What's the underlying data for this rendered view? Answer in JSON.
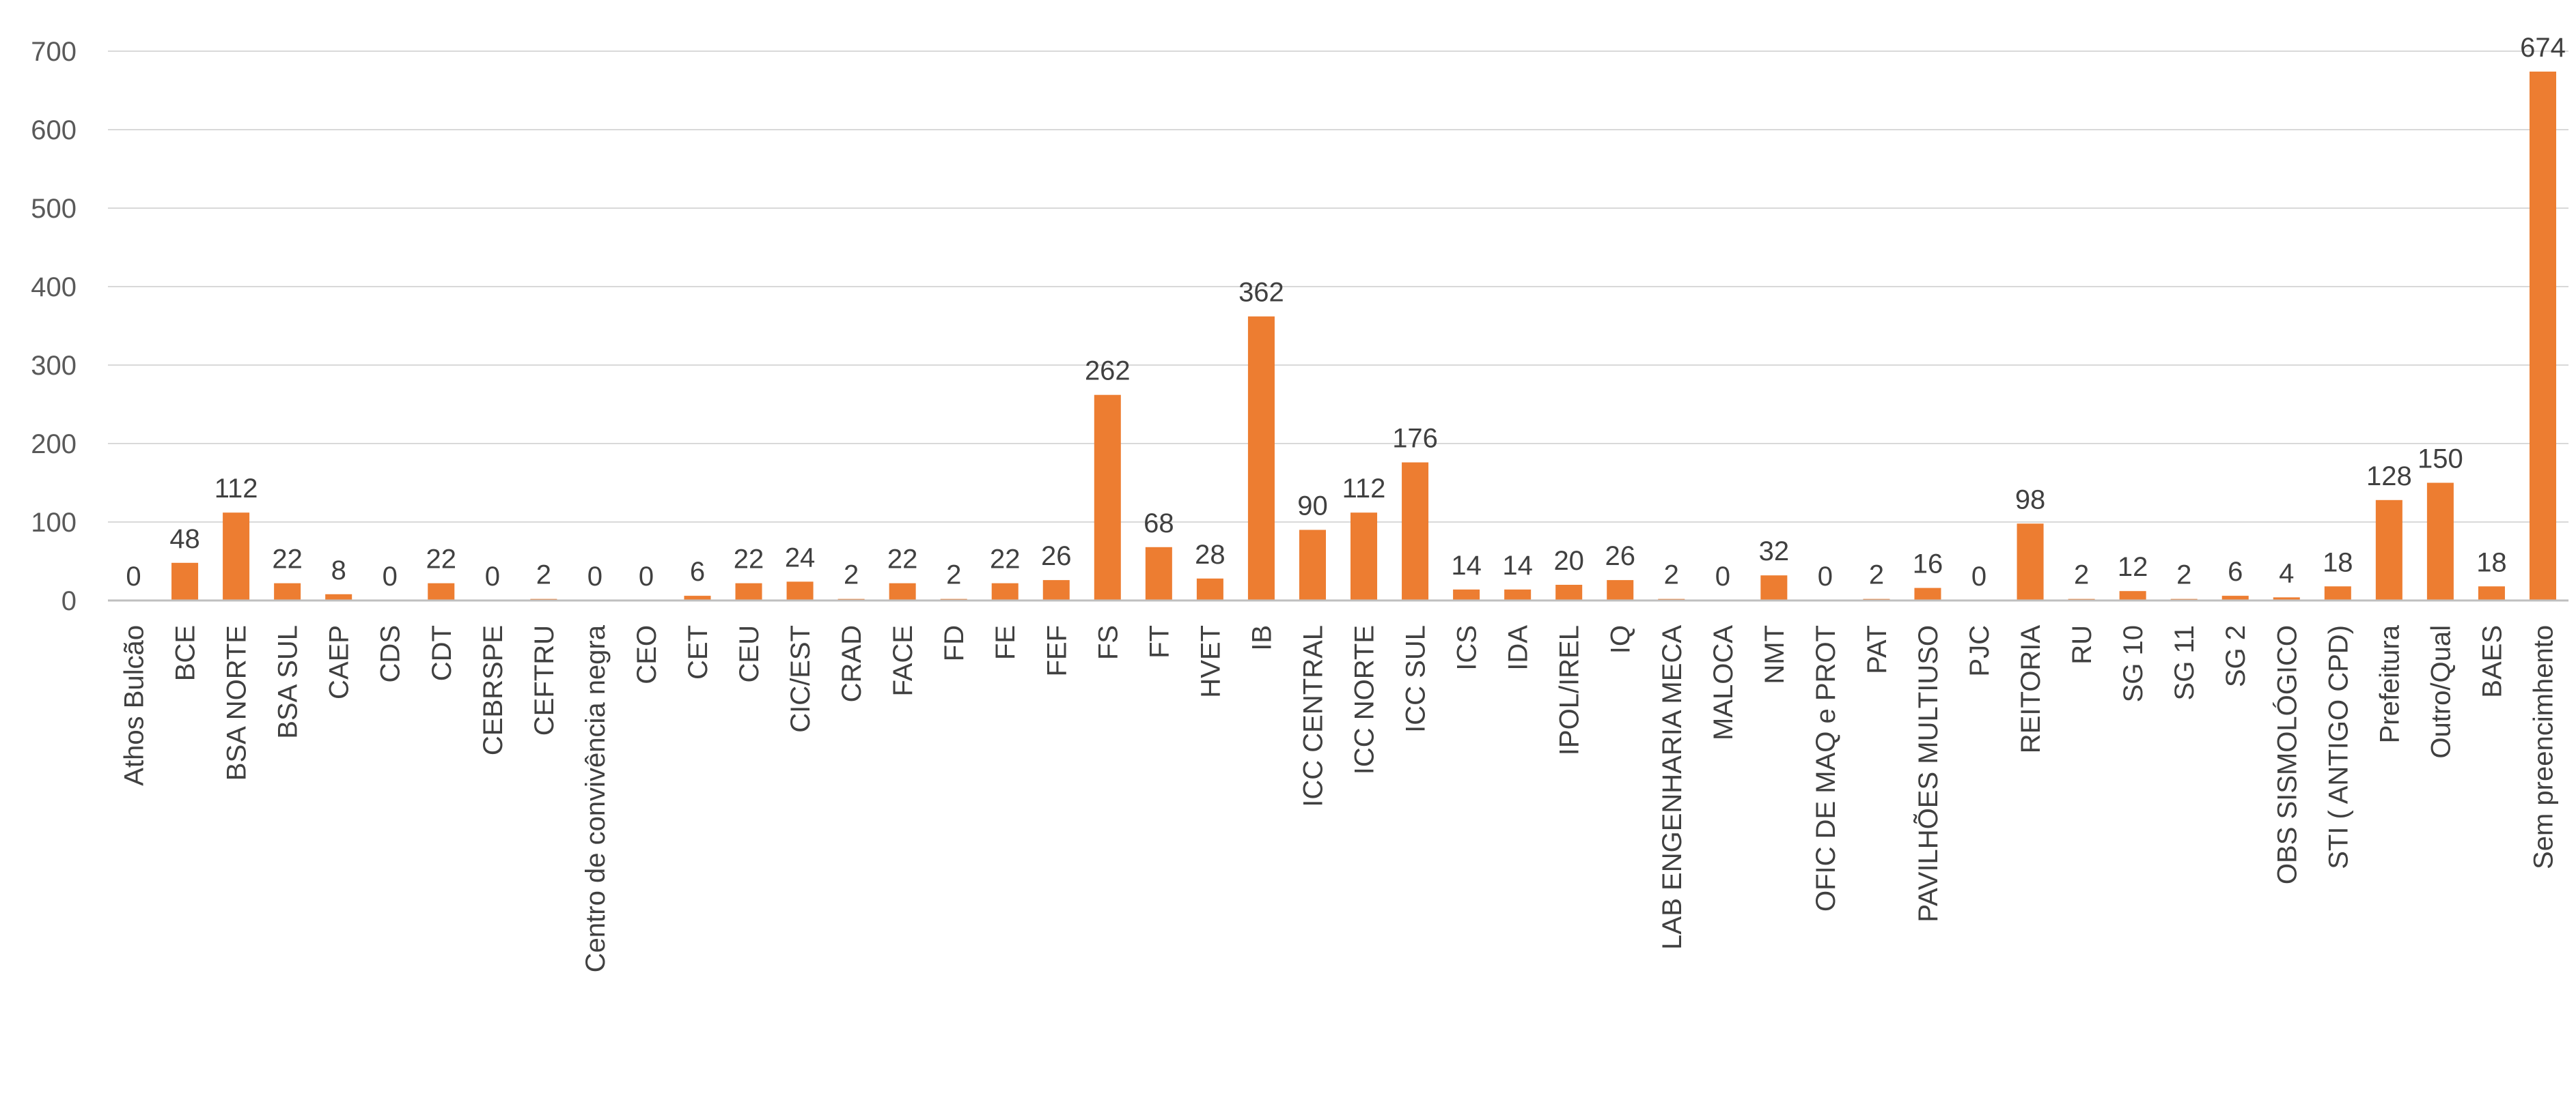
{
  "chart_data": {
    "type": "bar",
    "categories": [
      "Athos Bulcão",
      "BCE",
      "BSA NORTE",
      "BSA SUL",
      "CAEP",
      "CDS",
      "CDT",
      "CEBRSPE",
      "CEFTRU",
      "Centro de convivência negra",
      "CEO",
      "CET",
      "CEU",
      "CIC/EST",
      "CRAD",
      "FACE",
      "FD",
      "FE",
      "FEF",
      "FS",
      "FT",
      "HVET",
      "IB",
      "ICC CENTRAL",
      "ICC NORTE",
      "ICC SUL",
      "ICS",
      "IDA",
      "IPOL/IREL",
      "IQ",
      "LAB ENGENHARIA MECA",
      "MALOCA",
      "NMT",
      "OFIC DE MAQ e PROT",
      "PAT",
      "PAVILHÕES MULTIUSO",
      "PJC",
      "REITORIA",
      "RU",
      "SG 10",
      "SG 11",
      "SG 2",
      "OBS SISMOLÓGICO",
      "STI ( ANTIGO CPD)",
      "Prefeitura",
      "Outro/Qual",
      "BAES",
      "Sem preencimhento"
    ],
    "values": [
      0,
      48,
      112,
      22,
      8,
      0,
      22,
      0,
      2,
      0,
      0,
      6,
      22,
      24,
      2,
      22,
      2,
      22,
      26,
      262,
      68,
      28,
      362,
      90,
      112,
      176,
      14,
      14,
      20,
      26,
      2,
      0,
      32,
      0,
      2,
      16,
      0,
      98,
      2,
      12,
      2,
      6,
      4,
      18,
      128,
      150,
      18,
      674
    ],
    "ylim": [
      0,
      700
    ],
    "yticks": [
      0,
      100,
      200,
      300,
      400,
      500,
      600,
      700
    ],
    "grid": true,
    "data_labels": true,
    "bar_color": "#ed7d31",
    "title": "",
    "xlabel": "",
    "ylabel": ""
  }
}
